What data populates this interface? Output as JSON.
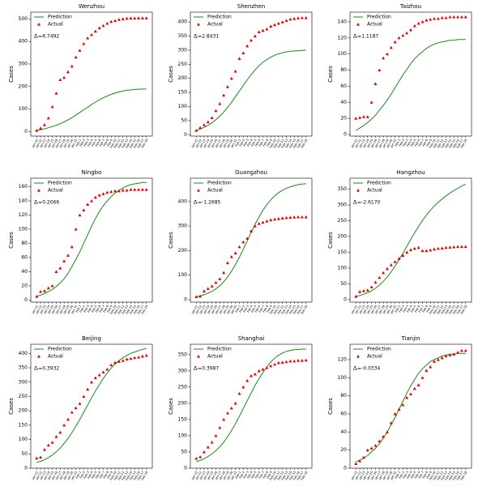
{
  "chart_data": [
    {
      "type": "line",
      "title": "Wenzhou",
      "y_label": "Cases",
      "annotation": "Δ̄ᵢ=6.7492",
      "categories": [
        "Jan-21",
        "Jan-22",
        "Jan-23",
        "Jan-24",
        "Jan-25",
        "Jan-26",
        "Jan-27",
        "Jan-28",
        "Jan-29",
        "Jan-30",
        "Jan-31",
        "Feb-1",
        "Feb-2",
        "Feb-3",
        "Feb-4",
        "Feb-5",
        "Feb-6",
        "Feb-7",
        "Feb-8",
        "Feb-9",
        "Feb-10",
        "Feb-11",
        "Feb-12",
        "Feb-13",
        "Feb-14",
        "Feb-15",
        "Feb-16",
        "Feb-17",
        "Feb-18"
      ],
      "series": [
        {
          "name": "Prediction",
          "color": "#1a8a1a",
          "style": "line",
          "values": [
            5,
            8,
            12,
            17,
            22,
            28,
            35,
            43,
            52,
            62,
            73,
            85,
            97,
            108,
            120,
            131,
            141,
            150,
            158,
            165,
            171,
            176,
            180,
            183,
            185,
            187,
            188,
            189,
            189
          ]
        },
        {
          "name": "Actual",
          "color": "#e00000",
          "style": "marker",
          "values": [
            5,
            15,
            30,
            60,
            110,
            170,
            230,
            240,
            265,
            290,
            330,
            360,
            390,
            415,
            430,
            445,
            460,
            470,
            480,
            488,
            492,
            497,
            500,
            502,
            503,
            503,
            504,
            504,
            504
          ]
        }
      ],
      "ylim": [
        -20,
        530
      ],
      "yticks": [
        0,
        100,
        200,
        300,
        400,
        500
      ]
    },
    {
      "type": "line",
      "title": "Shenzhen",
      "y_label": "Cases",
      "annotation": "Δ̄ᵢ=2.8431",
      "categories": [
        "Jan-21",
        "Jan-22",
        "Jan-23",
        "Jan-24",
        "Jan-25",
        "Jan-26",
        "Jan-27",
        "Jan-28",
        "Jan-29",
        "Jan-30",
        "Jan-31",
        "Feb-1",
        "Feb-2",
        "Feb-3",
        "Feb-4",
        "Feb-5",
        "Feb-6",
        "Feb-7",
        "Feb-8",
        "Feb-9",
        "Feb-10",
        "Feb-11",
        "Feb-12",
        "Feb-13",
        "Feb-14",
        "Feb-15",
        "Feb-16",
        "Feb-17",
        "Feb-18"
      ],
      "series": [
        {
          "name": "Prediction",
          "color": "#1a8a1a",
          "style": "line",
          "values": [
            15,
            20,
            26,
            33,
            42,
            53,
            66,
            80,
            97,
            115,
            135,
            155,
            175,
            195,
            213,
            230,
            245,
            257,
            267,
            275,
            282,
            287,
            291,
            294,
            296,
            297,
            298,
            299,
            300
          ]
        },
        {
          "name": "Actual",
          "color": "#e00000",
          "style": "marker",
          "values": [
            15,
            25,
            35,
            45,
            60,
            85,
            110,
            140,
            170,
            200,
            225,
            270,
            290,
            315,
            335,
            350,
            365,
            370,
            375,
            385,
            390,
            395,
            400,
            405,
            410,
            412,
            414,
            415,
            415
          ]
        }
      ],
      "ylim": [
        -5,
        435
      ],
      "yticks": [
        0,
        50,
        100,
        150,
        200,
        250,
        300,
        350,
        400
      ]
    },
    {
      "type": "line",
      "title": "Taizhou",
      "y_label": "Cases",
      "annotation": "Δ̄ᵢ=1.1187",
      "categories": [
        "Jan-21",
        "Jan-22",
        "Jan-23",
        "Jan-24",
        "Jan-25",
        "Jan-26",
        "Jan-27",
        "Jan-28",
        "Jan-29",
        "Jan-30",
        "Jan-31",
        "Feb-1",
        "Feb-2",
        "Feb-3",
        "Feb-4",
        "Feb-5",
        "Feb-6",
        "Feb-7",
        "Feb-8",
        "Feb-9",
        "Feb-10",
        "Feb-11",
        "Feb-12",
        "Feb-13",
        "Feb-14",
        "Feb-15",
        "Feb-16",
        "Feb-17",
        "Feb-18"
      ],
      "series": [
        {
          "name": "Prediction",
          "color": "#1a8a1a",
          "style": "line",
          "values": [
            5,
            8,
            11,
            15,
            19,
            24,
            30,
            36,
            43,
            50,
            58,
            66,
            74,
            81,
            88,
            94,
            99,
            103,
            107,
            110,
            112,
            114,
            115,
            116,
            117,
            117,
            118,
            118,
            118
          ]
        },
        {
          "name": "Actual",
          "color": "#e00000",
          "style": "marker",
          "values": [
            20,
            21,
            22,
            22,
            40,
            63,
            80,
            95,
            100,
            108,
            115,
            120,
            123,
            126,
            130,
            135,
            138,
            140,
            142,
            143,
            144,
            144,
            145,
            145,
            146,
            146,
            146,
            146,
            146
          ]
        }
      ],
      "ylim": [
        -2,
        152
      ],
      "yticks": [
        0,
        20,
        40,
        60,
        80,
        100,
        120,
        140
      ]
    },
    {
      "type": "line",
      "title": "Ningbo",
      "y_label": "Cases",
      "annotation": "Δ̄ᵢ=0.2066",
      "categories": [
        "Jan-21",
        "Jan-22",
        "Jan-23",
        "Jan-24",
        "Jan-25",
        "Jan-26",
        "Jan-27",
        "Jan-28",
        "Jan-29",
        "Jan-30",
        "Jan-31",
        "Feb-1",
        "Feb-2",
        "Feb-3",
        "Feb-4",
        "Feb-5",
        "Feb-6",
        "Feb-7",
        "Feb-8",
        "Feb-9",
        "Feb-10",
        "Feb-11",
        "Feb-12",
        "Feb-13",
        "Feb-14",
        "Feb-15",
        "Feb-16",
        "Feb-17",
        "Feb-18"
      ],
      "series": [
        {
          "name": "Prediction",
          "color": "#1a8a1a",
          "style": "line",
          "values": [
            5,
            7,
            9,
            12,
            15,
            19,
            24,
            30,
            38,
            47,
            57,
            68,
            80,
            92,
            104,
            115,
            125,
            133,
            140,
            146,
            151,
            155,
            158,
            161,
            163,
            164,
            165,
            166,
            166
          ]
        },
        {
          "name": "Actual",
          "color": "#e00000",
          "style": "marker",
          "values": [
            5,
            12,
            13,
            17,
            20,
            40,
            45,
            55,
            63,
            75,
            100,
            120,
            127,
            135,
            140,
            145,
            148,
            150,
            152,
            153,
            154,
            154,
            155,
            155,
            156,
            156,
            156,
            156,
            156
          ]
        }
      ],
      "ylim": [
        -3,
        172
      ],
      "yticks": [
        0,
        20,
        40,
        60,
        80,
        100,
        120,
        140,
        160
      ]
    },
    {
      "type": "line",
      "title": "Guangzhou",
      "y_label": "Cases",
      "annotation": "Δ̄ᵢ=-1.2685",
      "categories": [
        "Jan-21",
        "Jan-22",
        "Jan-23",
        "Jan-24",
        "Jan-25",
        "Jan-26",
        "Jan-27",
        "Jan-28",
        "Jan-29",
        "Jan-30",
        "Jan-31",
        "Feb-1",
        "Feb-2",
        "Feb-3",
        "Feb-4",
        "Feb-5",
        "Feb-6",
        "Feb-7",
        "Feb-8",
        "Feb-9",
        "Feb-10",
        "Feb-11",
        "Feb-12",
        "Feb-13",
        "Feb-14",
        "Feb-15",
        "Feb-16",
        "Feb-17",
        "Feb-18"
      ],
      "series": [
        {
          "name": "Prediction",
          "color": "#1a8a1a",
          "style": "line",
          "values": [
            12,
            15,
            20,
            26,
            34,
            44,
            57,
            73,
            93,
            116,
            143,
            173,
            206,
            240,
            274,
            307,
            337,
            364,
            387,
            407,
            423,
            436,
            446,
            454,
            460,
            465,
            469,
            471,
            473
          ]
        },
        {
          "name": "Actual",
          "color": "#e00000",
          "style": "marker",
          "values": [
            12,
            14,
            35,
            45,
            55,
            70,
            85,
            110,
            150,
            175,
            190,
            215,
            235,
            250,
            280,
            300,
            310,
            315,
            320,
            325,
            328,
            330,
            332,
            334,
            335,
            336,
            337,
            337,
            337
          ]
        }
      ],
      "ylim": [
        -10,
        495
      ],
      "yticks": [
        0,
        100,
        200,
        300,
        400
      ]
    },
    {
      "type": "line",
      "title": "Hangzhou",
      "y_label": "Cases",
      "annotation": "Δ̄ᵢ=-2.6170",
      "categories": [
        "Jan-21",
        "Jan-22",
        "Jan-23",
        "Jan-24",
        "Jan-25",
        "Jan-26",
        "Jan-27",
        "Jan-28",
        "Jan-29",
        "Jan-30",
        "Jan-31",
        "Feb-1",
        "Feb-2",
        "Feb-3",
        "Feb-4",
        "Feb-5",
        "Feb-6",
        "Feb-7",
        "Feb-8",
        "Feb-9",
        "Feb-10",
        "Feb-11",
        "Feb-12",
        "Feb-13",
        "Feb-14",
        "Feb-15",
        "Feb-16",
        "Feb-17",
        "Feb-18"
      ],
      "series": [
        {
          "name": "Prediction",
          "color": "#1a8a1a",
          "style": "line",
          "values": [
            10,
            13,
            17,
            22,
            28,
            36,
            46,
            58,
            72,
            88,
            106,
            126,
            147,
            169,
            191,
            212,
            232,
            251,
            268,
            283,
            297,
            309,
            319,
            329,
            338,
            346,
            353,
            360,
            366
          ]
        },
        {
          "name": "Actual",
          "color": "#e00000",
          "style": "marker",
          "values": [
            10,
            25,
            28,
            30,
            40,
            55,
            70,
            85,
            98,
            110,
            120,
            130,
            140,
            150,
            158,
            162,
            165,
            155,
            155,
            157,
            160,
            162,
            163,
            165,
            166,
            167,
            168,
            168,
            168
          ]
        }
      ],
      "ylim": [
        -8,
        385
      ],
      "yticks": [
        0,
        50,
        100,
        150,
        200,
        250,
        300,
        350
      ]
    },
    {
      "type": "line",
      "title": "Beijing",
      "y_label": "Cases",
      "annotation": "Δ̄ᵢ=0.3932",
      "categories": [
        "Jan-21",
        "Jan-22",
        "Jan-23",
        "Jan-24",
        "Jan-25",
        "Jan-26",
        "Jan-27",
        "Jan-28",
        "Jan-29",
        "Jan-30",
        "Jan-31",
        "Feb-1",
        "Feb-2",
        "Feb-3",
        "Feb-4",
        "Feb-5",
        "Feb-6",
        "Feb-7",
        "Feb-8",
        "Feb-9",
        "Feb-10",
        "Feb-11",
        "Feb-12",
        "Feb-13",
        "Feb-14",
        "Feb-15",
        "Feb-16",
        "Feb-17",
        "Feb-18"
      ],
      "series": [
        {
          "name": "Prediction",
          "color": "#1a8a1a",
          "style": "line",
          "values": [
            20,
            24,
            30,
            37,
            46,
            57,
            70,
            86,
            104,
            124,
            146,
            170,
            195,
            220,
            245,
            269,
            292,
            313,
            332,
            349,
            363,
            375,
            385,
            393,
            400,
            405,
            410,
            414,
            418
          ]
        },
        {
          "name": "Actual",
          "color": "#e00000",
          "style": "marker",
          "values": [
            35,
            38,
            65,
            80,
            90,
            110,
            125,
            150,
            170,
            195,
            210,
            225,
            250,
            275,
            300,
            315,
            325,
            335,
            345,
            360,
            368,
            372,
            375,
            380,
            382,
            385,
            387,
            390,
            393
          ]
        }
      ],
      "ylim": [
        0,
        432
      ],
      "yticks": [
        0,
        50,
        100,
        150,
        200,
        250,
        300,
        350,
        400
      ]
    },
    {
      "type": "line",
      "title": "Shanghai",
      "y_label": "Cases",
      "annotation": "Δ̄ᵢ=0.3987",
      "categories": [
        "Jan-21",
        "Jan-22",
        "Jan-23",
        "Jan-24",
        "Jan-25",
        "Jan-26",
        "Jan-27",
        "Jan-28",
        "Jan-29",
        "Jan-30",
        "Jan-31",
        "Feb-1",
        "Feb-2",
        "Feb-3",
        "Feb-4",
        "Feb-5",
        "Feb-6",
        "Feb-7",
        "Feb-8",
        "Feb-9",
        "Feb-10",
        "Feb-11",
        "Feb-12",
        "Feb-13",
        "Feb-14",
        "Feb-15",
        "Feb-16",
        "Feb-17",
        "Feb-18"
      ],
      "series": [
        {
          "name": "Prediction",
          "color": "#1a8a1a",
          "style": "line",
          "values": [
            20,
            24,
            29,
            36,
            44,
            54,
            66,
            80,
            97,
            116,
            137,
            160,
            184,
            208,
            232,
            255,
            276,
            295,
            312,
            327,
            339,
            348,
            355,
            360,
            363,
            365,
            366,
            367,
            367
          ]
        },
        {
          "name": "Actual",
          "color": "#e00000",
          "style": "marker",
          "values": [
            30,
            35,
            50,
            65,
            80,
            100,
            125,
            150,
            170,
            185,
            200,
            230,
            250,
            270,
            285,
            290,
            300,
            305,
            310,
            315,
            320,
            325,
            326,
            328,
            330,
            330,
            332,
            332,
            333
          ]
        }
      ],
      "ylim": [
        0,
        382
      ],
      "yticks": [
        0,
        50,
        100,
        150,
        200,
        250,
        300,
        350
      ]
    },
    {
      "type": "line",
      "title": "Tianjin",
      "y_label": "Cases",
      "annotation": "Δ̄ᵢ=-0.0334",
      "categories": [
        "Jan-21",
        "Jan-22",
        "Jan-23",
        "Jan-24",
        "Jan-25",
        "Jan-26",
        "Jan-27",
        "Jan-28",
        "Jan-29",
        "Jan-30",
        "Jan-31",
        "Feb-1",
        "Feb-2",
        "Feb-3",
        "Feb-4",
        "Feb-5",
        "Feb-6",
        "Feb-7",
        "Feb-8",
        "Feb-9",
        "Feb-10",
        "Feb-11",
        "Feb-12",
        "Feb-13",
        "Feb-14",
        "Feb-15",
        "Feb-16",
        "Feb-17",
        "Feb-18"
      ],
      "series": [
        {
          "name": "Prediction",
          "color": "#1a8a1a",
          "style": "line",
          "values": [
            7,
            9,
            11,
            14,
            18,
            22,
            27,
            33,
            40,
            48,
            56,
            65,
            74,
            83,
            91,
            98,
            105,
            110,
            114,
            118,
            120,
            122,
            124,
            125,
            126,
            126,
            127,
            127,
            127
          ]
        },
        {
          "name": "Actual",
          "color": "#e00000",
          "style": "marker",
          "values": [
            5,
            8,
            12,
            20,
            22,
            25,
            30,
            35,
            40,
            50,
            60,
            65,
            70,
            78,
            82,
            88,
            92,
            100,
            108,
            112,
            118,
            120,
            122,
            124,
            125,
            126,
            128,
            130,
            130
          ]
        }
      ],
      "ylim": [
        0,
        137
      ],
      "yticks": [
        0,
        20,
        40,
        60,
        80,
        100,
        120
      ]
    }
  ]
}
